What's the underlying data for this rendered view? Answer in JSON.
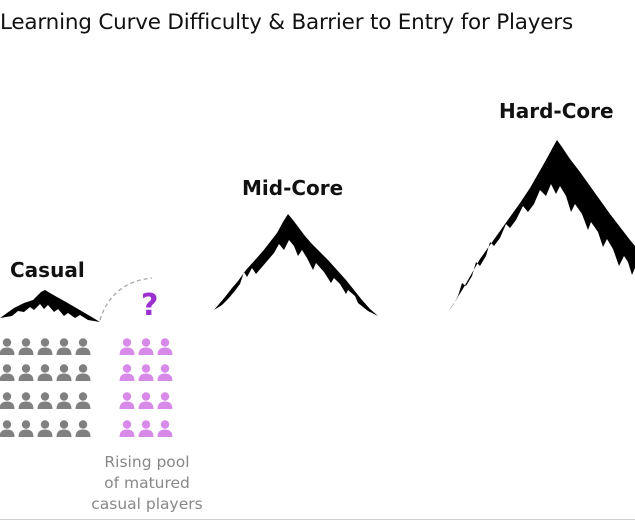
{
  "title": "Learning Curve Difficulty & Barrier to Entry for Players",
  "tiers": [
    {
      "name": "Casual"
    },
    {
      "name": "Mid-Core"
    },
    {
      "name": "Hard-Core"
    }
  ],
  "question_mark": "?",
  "caption_lines": [
    "Rising pool",
    "of matured",
    "casual players"
  ],
  "colors": {
    "casual_players": "#808080",
    "matured_players": "#d88ae8",
    "question_mark": "#9b30d0",
    "mountain": "#000000",
    "caption": "#888888"
  },
  "icons": [
    "person-icon",
    "mountain-icon"
  ]
}
